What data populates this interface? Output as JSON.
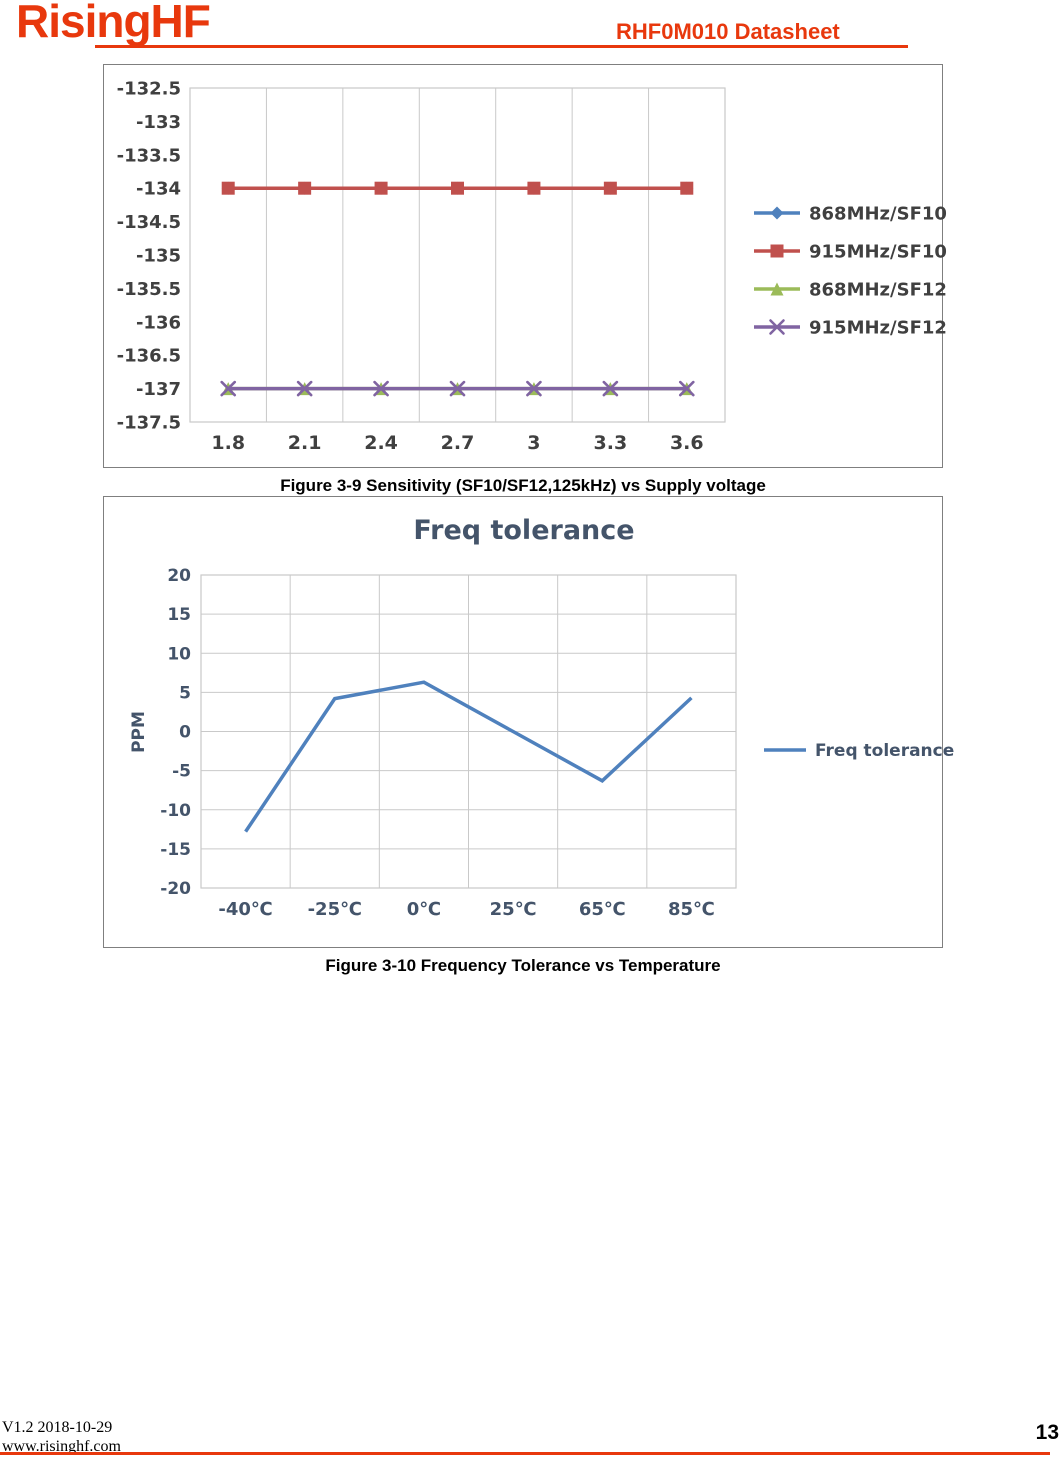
{
  "header": {
    "logo_text": "RisingHF",
    "doc_title": "RHF0M010 Datasheet",
    "accent_color": "#e8380d"
  },
  "figures": {
    "fig39_caption": "Figure 3-9 Sensitivity (SF10/SF12,125kHz) vs Supply voltage",
    "fig310_caption": "Figure 3-10 Frequency Tolerance vs Temperature"
  },
  "chart_data": [
    {
      "id": "sensitivity_vs_supply_voltage",
      "type": "line",
      "title": "",
      "xlabel": "",
      "ylabel": "",
      "categories": [
        "1.8",
        "2.1",
        "2.4",
        "2.7",
        "3",
        "3.3",
        "3.6"
      ],
      "series": [
        {
          "name": "868MHz/SF10",
          "values": [
            -134,
            -134,
            -134,
            -134,
            -134,
            -134,
            -134
          ],
          "color": "#4F81BD",
          "marker": "diamond"
        },
        {
          "name": "915MHz/SF10",
          "values": [
            -134,
            -134,
            -134,
            -134,
            -134,
            -134,
            -134
          ],
          "color": "#C0504D",
          "marker": "square"
        },
        {
          "name": "868MHz/SF12",
          "values": [
            -137,
            -137,
            -137,
            -137,
            -137,
            -137,
            -137
          ],
          "color": "#9BBB59",
          "marker": "triangle"
        },
        {
          "name": "915MHz/SF12",
          "values": [
            -137,
            -137,
            -137,
            -137,
            -137,
            -137,
            -137
          ],
          "color": "#8064A2",
          "marker": "x"
        }
      ],
      "ylim": [
        -137.5,
        -132.5
      ],
      "ytick_step": 0.5,
      "grid": "vertical",
      "legend_position": "right"
    },
    {
      "id": "freq_tolerance_vs_temperature",
      "type": "line",
      "title": "Freq tolerance",
      "xlabel": "",
      "ylabel": "PPM",
      "categories": [
        "-40℃",
        "-25℃",
        "0℃",
        "25℃",
        "65℃",
        "85℃"
      ],
      "series": [
        {
          "name": "Freq tolerance",
          "values": [
            -12.8,
            4.2,
            6.3,
            0,
            -6.3,
            4.3
          ],
          "color": "#4F81BD",
          "marker": null
        }
      ],
      "ylim": [
        -20,
        20
      ],
      "ytick_step": 5,
      "grid": "both",
      "legend_position": "right"
    }
  ],
  "footer": {
    "version": "V1.2 2018-10-29",
    "website": "www.risinghf.com",
    "page_number": "13"
  }
}
